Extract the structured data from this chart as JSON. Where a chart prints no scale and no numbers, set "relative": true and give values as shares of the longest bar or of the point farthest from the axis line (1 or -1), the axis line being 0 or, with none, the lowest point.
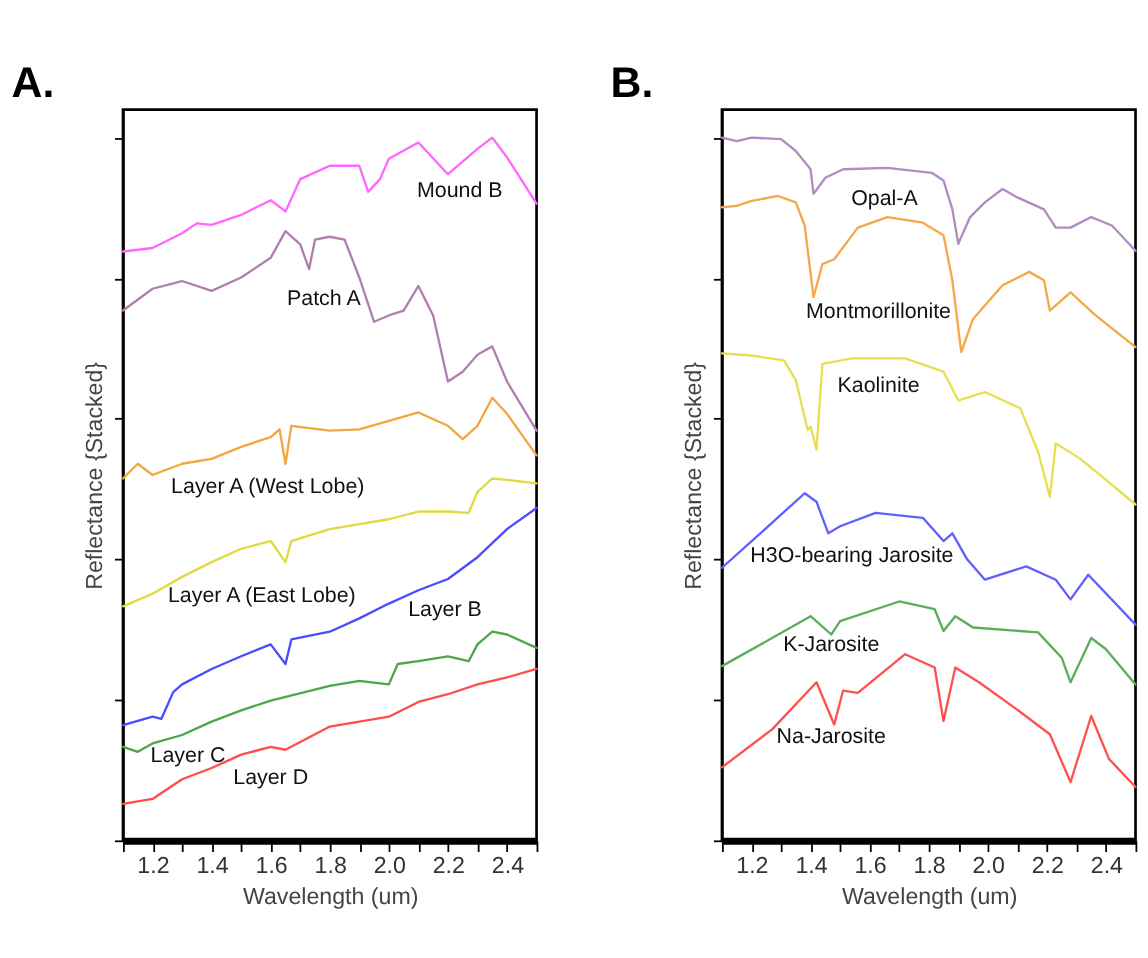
{
  "chart_data": [
    {
      "type": "line",
      "title": "A.",
      "xlabel": "Wavelength (um)",
      "ylabel": "Reflectance {Stacked}",
      "relative": true,
      "grid": false,
      "marker": "none",
      "line_style": "solid",
      "tick_labels": "x",
      "xlim": [
        1.1,
        2.5
      ],
      "xticks": [
        {
          "value": 1.1,
          "label": null
        },
        1.2,
        {
          "value": 1.3,
          "label": null
        },
        1.4,
        {
          "value": 1.5,
          "label": null
        },
        1.6,
        {
          "value": 1.7,
          "label": null
        },
        1.8,
        {
          "value": 1.9,
          "label": null
        },
        {
          "value": 2.0,
          "label": "2.0"
        },
        {
          "value": 2.1,
          "label": null
        },
        2.2,
        {
          "value": 2.3,
          "label": null
        },
        2.4,
        {
          "value": 2.5,
          "label": null
        }
      ],
      "series": [
        {
          "name": "Mound B",
          "color": "#ff66ff",
          "x": [
            1.1,
            1.2,
            1.3,
            1.35,
            1.4,
            1.5,
            1.6,
            1.65,
            1.7,
            1.8,
            1.9,
            1.93,
            1.97,
            2.0,
            2.1,
            2.2,
            2.3,
            2.35,
            2.4,
            2.5
          ],
          "values": [
            0.838,
            0.843,
            0.864,
            0.878,
            0.876,
            0.89,
            0.911,
            0.895,
            0.941,
            0.96,
            0.96,
            0.923,
            0.941,
            0.97,
            0.993,
            0.948,
            0.984,
            1.0,
            0.972,
            0.906
          ]
        },
        {
          "name": "Patch A",
          "color": "#b07fb0",
          "x": [
            1.1,
            1.2,
            1.3,
            1.4,
            1.5,
            1.6,
            1.65,
            1.7,
            1.73,
            1.75,
            1.8,
            1.85,
            1.9,
            1.95,
            2.0,
            2.05,
            2.1,
            2.15,
            2.2,
            2.25,
            2.3,
            2.35,
            2.4,
            2.5
          ],
          "values": [
            0.754,
            0.785,
            0.796,
            0.782,
            0.801,
            0.829,
            0.867,
            0.848,
            0.813,
            0.855,
            0.859,
            0.855,
            0.801,
            0.738,
            0.747,
            0.754,
            0.789,
            0.747,
            0.653,
            0.667,
            0.691,
            0.703,
            0.653,
            0.583
          ]
        },
        {
          "name": "Layer A (West Lobe)",
          "color": "#f0a840",
          "x": [
            1.1,
            1.15,
            1.2,
            1.3,
            1.4,
            1.5,
            1.6,
            1.63,
            1.65,
            1.67,
            1.8,
            1.9,
            2.0,
            2.1,
            2.2,
            2.25,
            2.3,
            2.35,
            2.4,
            2.5
          ],
          "values": [
            0.515,
            0.536,
            0.52,
            0.536,
            0.543,
            0.56,
            0.574,
            0.585,
            0.536,
            0.59,
            0.583,
            0.585,
            0.597,
            0.609,
            0.59,
            0.571,
            0.59,
            0.63,
            0.607,
            0.548
          ]
        },
        {
          "name": "Layer A (East Lobe)",
          "color": "#e0da40",
          "x": [
            1.1,
            1.2,
            1.3,
            1.4,
            1.5,
            1.6,
            1.65,
            1.67,
            1.8,
            1.9,
            2.0,
            2.1,
            2.2,
            2.27,
            2.3,
            2.35,
            2.4,
            2.5
          ],
          "values": [
            0.333,
            0.351,
            0.375,
            0.396,
            0.415,
            0.426,
            0.396,
            0.426,
            0.443,
            0.45,
            0.457,
            0.468,
            0.468,
            0.466,
            0.496,
            0.515,
            0.513,
            0.508
          ]
        },
        {
          "name": "Layer B",
          "color": "#4b4bff",
          "x": [
            1.1,
            1.2,
            1.23,
            1.27,
            1.3,
            1.4,
            1.5,
            1.6,
            1.65,
            1.67,
            1.8,
            1.9,
            2.0,
            2.1,
            2.2,
            2.3,
            2.4,
            2.5
          ],
          "values": [
            0.164,
            0.176,
            0.173,
            0.211,
            0.222,
            0.244,
            0.262,
            0.279,
            0.251,
            0.286,
            0.297,
            0.316,
            0.337,
            0.356,
            0.372,
            0.403,
            0.443,
            0.473
          ]
        },
        {
          "name": "Layer C",
          "color": "#4ca64c",
          "x": [
            1.1,
            1.15,
            1.2,
            1.3,
            1.4,
            1.5,
            1.6,
            1.8,
            1.9,
            2.0,
            2.03,
            2.1,
            2.2,
            2.27,
            2.3,
            2.35,
            2.4,
            2.5
          ],
          "values": [
            0.133,
            0.126,
            0.138,
            0.15,
            0.169,
            0.185,
            0.199,
            0.22,
            0.227,
            0.222,
            0.251,
            0.255,
            0.262,
            0.255,
            0.279,
            0.297,
            0.293,
            0.274
          ]
        },
        {
          "name": "Layer D",
          "color": "#ff4c4c",
          "x": [
            1.1,
            1.2,
            1.3,
            1.4,
            1.5,
            1.6,
            1.65,
            1.8,
            1.9,
            2.0,
            2.1,
            2.2,
            2.3,
            2.4,
            2.5
          ],
          "values": [
            0.052,
            0.059,
            0.087,
            0.103,
            0.122,
            0.133,
            0.129,
            0.162,
            0.169,
            0.176,
            0.197,
            0.208,
            0.222,
            0.232,
            0.244
          ]
        }
      ]
    },
    {
      "type": "line",
      "title": "B.",
      "xlabel": "Wavelength (um)",
      "ylabel": "Reflectance {Stacked}",
      "relative": true,
      "grid": false,
      "marker": "none",
      "line_style": "solid",
      "tick_labels": "x",
      "xlim": [
        1.1,
        2.5
      ],
      "xticks": [
        {
          "value": 1.1,
          "label": null
        },
        1.2,
        {
          "value": 1.3,
          "label": null
        },
        1.4,
        {
          "value": 1.5,
          "label": null
        },
        1.6,
        {
          "value": 1.7,
          "label": null
        },
        1.8,
        {
          "value": 1.9,
          "label": null
        },
        {
          "value": 2.0,
          "label": "2.0"
        },
        {
          "value": 2.1,
          "label": null
        },
        2.2,
        {
          "value": 2.3,
          "label": null
        },
        2.4,
        {
          "value": 2.5,
          "label": null
        }
      ],
      "series": [
        {
          "name": "Opal-A",
          "color": "#b08cc0",
          "x": [
            1.1,
            1.15,
            1.2,
            1.3,
            1.35,
            1.4,
            1.41,
            1.45,
            1.51,
            1.66,
            1.81,
            1.85,
            1.88,
            1.9,
            1.94,
            1.99,
            2.05,
            2.1,
            2.19,
            2.23,
            2.28,
            2.35,
            2.42,
            2.5
          ],
          "values": [
            1.0,
            0.995,
            1.0,
            0.998,
            0.981,
            0.955,
            0.92,
            0.943,
            0.955,
            0.957,
            0.95,
            0.939,
            0.898,
            0.849,
            0.887,
            0.908,
            0.927,
            0.915,
            0.898,
            0.872,
            0.872,
            0.887,
            0.875,
            0.839
          ]
        },
        {
          "name": "Montmorillonite",
          "color": "#f5a84a",
          "x": [
            1.1,
            1.15,
            1.2,
            1.29,
            1.35,
            1.38,
            1.41,
            1.44,
            1.48,
            1.56,
            1.66,
            1.78,
            1.85,
            1.88,
            1.91,
            1.95,
            2.05,
            2.14,
            2.19,
            2.21,
            2.28,
            2.36,
            2.5
          ],
          "values": [
            0.901,
            0.903,
            0.91,
            0.917,
            0.908,
            0.875,
            0.773,
            0.82,
            0.827,
            0.872,
            0.887,
            0.879,
            0.861,
            0.797,
            0.695,
            0.742,
            0.79,
            0.809,
            0.797,
            0.754,
            0.78,
            0.749,
            0.702
          ]
        },
        {
          "name": "Kaolinite",
          "color": "#e6e050",
          "x": [
            1.1,
            1.2,
            1.31,
            1.35,
            1.39,
            1.4,
            1.42,
            1.44,
            1.54,
            1.72,
            1.85,
            1.9,
            1.99,
            2.11,
            2.17,
            2.21,
            2.23,
            2.31,
            2.4,
            2.5
          ],
          "values": [
            0.693,
            0.69,
            0.683,
            0.655,
            0.584,
            0.589,
            0.556,
            0.678,
            0.686,
            0.686,
            0.667,
            0.626,
            0.638,
            0.615,
            0.553,
            0.489,
            0.565,
            0.544,
            0.513,
            0.478
          ]
        },
        {
          "name": "H3O-bearing Jarosite",
          "color": "#6060ff",
          "x": [
            1.1,
            1.23,
            1.38,
            1.42,
            1.46,
            1.5,
            1.62,
            1.78,
            1.85,
            1.88,
            1.93,
            1.99,
            2.13,
            2.23,
            2.28,
            2.34,
            2.5
          ],
          "values": [
            0.388,
            0.437,
            0.494,
            0.482,
            0.437,
            0.447,
            0.466,
            0.459,
            0.426,
            0.437,
            0.4,
            0.371,
            0.39,
            0.371,
            0.343,
            0.378,
            0.307
          ]
        },
        {
          "name": "K-Jarosite",
          "color": "#5aae5a",
          "x": [
            1.1,
            1.27,
            1.4,
            1.47,
            1.5,
            1.7,
            1.82,
            1.85,
            1.89,
            1.95,
            2.17,
            2.25,
            2.28,
            2.35,
            2.4,
            2.5
          ],
          "values": [
            0.248,
            0.288,
            0.319,
            0.293,
            0.312,
            0.34,
            0.329,
            0.298,
            0.319,
            0.303,
            0.296,
            0.26,
            0.225,
            0.288,
            0.272,
            0.222
          ]
        },
        {
          "name": "Na-Jarosite",
          "color": "#ff5050",
          "x": [
            1.1,
            1.27,
            1.42,
            1.48,
            1.51,
            1.56,
            1.72,
            1.82,
            1.85,
            1.89,
            1.97,
            2.09,
            2.21,
            2.28,
            2.35,
            2.41,
            2.5
          ],
          "values": [
            0.104,
            0.158,
            0.225,
            0.165,
            0.213,
            0.21,
            0.265,
            0.246,
            0.17,
            0.246,
            0.225,
            0.189,
            0.151,
            0.083,
            0.177,
            0.116,
            0.076
          ]
        }
      ]
    }
  ]
}
